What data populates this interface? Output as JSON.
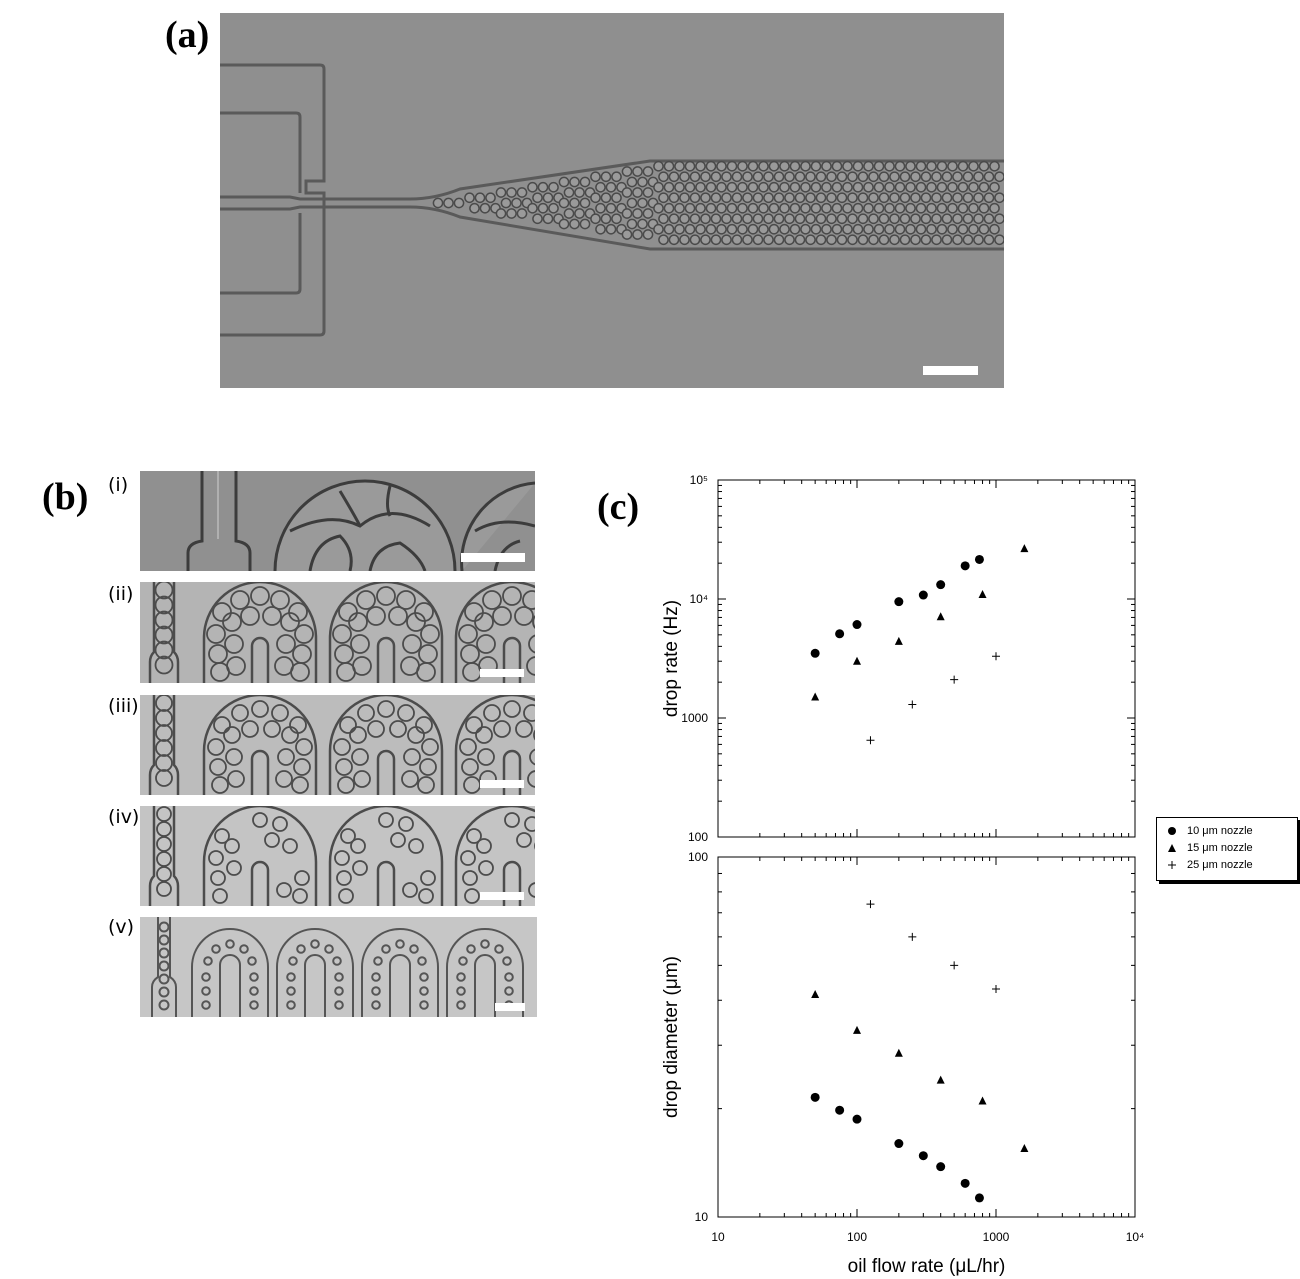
{
  "panels": {
    "a": {
      "letter": "(a)"
    },
    "b": {
      "letter": "(b)",
      "sub_labels": [
        "(i)",
        "(ii)",
        "(iii)",
        "(iv)",
        "(v)"
      ]
    },
    "c": {
      "letter": "(c)"
    }
  },
  "colors": {
    "micrograph_bg": "#8e8e8e",
    "light_micrograph_bg": "#c9c9c9",
    "marker": "#000000"
  },
  "chart_data": [
    {
      "type": "scatter",
      "xscale": "log",
      "yscale": "log",
      "xlim": [
        10,
        10000
      ],
      "ylim": [
        100,
        100000
      ],
      "ylabel": "drop rate (Hz)",
      "xticks": [
        "10",
        "100",
        "1000",
        "10⁴"
      ],
      "yticks": [
        "100",
        "1000",
        "10⁴",
        "10⁵"
      ],
      "series": [
        {
          "name": "10 μm nozzle",
          "marker": "circle",
          "x": [
            50,
            75,
            100,
            200,
            300,
            400,
            600,
            760
          ],
          "y": [
            3500,
            5100,
            6100,
            9500,
            10800,
            13200,
            19000,
            21500
          ]
        },
        {
          "name": "15 μm nozzle",
          "marker": "triangle",
          "x": [
            50,
            100,
            200,
            400,
            800,
            1600
          ],
          "y": [
            1500,
            3000,
            4400,
            7100,
            10900,
            26500
          ]
        },
        {
          "name": "25 μm nozzle",
          "marker": "plus",
          "x": [
            125,
            250,
            500,
            1000
          ],
          "y": [
            650,
            1300,
            2100,
            3300
          ]
        }
      ]
    },
    {
      "type": "scatter",
      "xscale": "log",
      "yscale": "log",
      "xlim": [
        10,
        10000
      ],
      "ylim": [
        10,
        100
      ],
      "xlabel": "oil flow rate (μL/hr)",
      "ylabel": "drop diameter (μm)",
      "xticks": [
        "10",
        "100",
        "1000",
        "10⁴"
      ],
      "yticks": [
        "10",
        "100"
      ],
      "series": [
        {
          "name": "10 μm nozzle",
          "marker": "circle",
          "x": [
            50,
            75,
            100,
            200,
            300,
            400,
            600,
            760
          ],
          "y": [
            21.5,
            19.8,
            18.7,
            16.0,
            14.8,
            13.8,
            12.4,
            11.3
          ]
        },
        {
          "name": "15 μm nozzle",
          "marker": "triangle",
          "x": [
            50,
            100,
            200,
            400,
            800,
            1600
          ],
          "y": [
            41.5,
            33.0,
            28.5,
            24.0,
            21.0,
            15.5
          ]
        },
        {
          "name": "25 μm nozzle",
          "marker": "plus",
          "x": [
            125,
            250,
            500,
            1000
          ],
          "y": [
            74.0,
            60.0,
            50.0,
            43.0
          ]
        }
      ]
    }
  ],
  "legend": {
    "entries": [
      "10 μm nozzle",
      "15 μm nozzle",
      "25 μm nozzle"
    ]
  }
}
